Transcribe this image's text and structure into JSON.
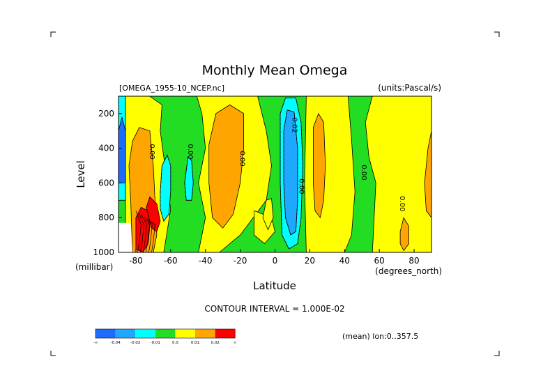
{
  "title": "Monthly Mean Omega",
  "file_label": "[OMEGA_1955-10_NCEP.nc]",
  "units_label": "(units:Pascal/s)",
  "xlabel": "Latitude",
  "ylabel": "Level",
  "x_units": "(degrees_north)",
  "y_units": "(millibar)",
  "contour_interval": "CONTOUR INTERVAL = 1.000E-02",
  "mean_note": "(mean) lon:0..357.5",
  "colors": {
    "lt_m004": "#1e6bff",
    "m004_m002": "#1fa8ff",
    "m002_m001": "#00ffff",
    "m001_0": "#22dd22",
    "0_001": "#ffff00",
    "001_002": "#ffa500",
    "gt_002": "#ff0000"
  },
  "colorbar": {
    "labels": [
      "-∞",
      "-0.04",
      "-0.02",
      "-0.01",
      "0.0",
      "0.01",
      "0.02",
      "∞"
    ],
    "colors": [
      "#1e6bff",
      "#1fa8ff",
      "#00ffff",
      "#22dd22",
      "#ffff00",
      "#ffa500",
      "#ff0000"
    ]
  },
  "chart_data": {
    "type": "heatmap",
    "title": "Monthly Mean Omega",
    "xlabel": "Latitude",
    "ylabel": "Level",
    "units": "Pascal/s",
    "xlim": [
      -90,
      90
    ],
    "ylim": [
      1000,
      100
    ],
    "y_inverted": true,
    "xticks": [
      -80,
      -60,
      -40,
      -20,
      0,
      20,
      40,
      60,
      80
    ],
    "yticks": [
      200,
      400,
      600,
      800,
      1000
    ],
    "levels": [
      -0.04,
      -0.02,
      -0.01,
      0.0,
      0.01,
      0.02
    ],
    "contour_labels": [
      {
        "lat": -72,
        "lev": 420,
        "text": "0.00"
      },
      {
        "lat": -50,
        "lev": 420,
        "text": "0.00"
      },
      {
        "lat": -20,
        "lev": 460,
        "text": "0.00"
      },
      {
        "lat": 10,
        "lev": 260,
        "text": "-0.02"
      },
      {
        "lat": 14,
        "lev": 620,
        "text": "0.00"
      },
      {
        "lat": 50,
        "lev": 540,
        "text": "0.00"
      },
      {
        "lat": 72,
        "lev": 720,
        "text": "0.00"
      }
    ],
    "regions": [
      {
        "color": "m001_0",
        "type": "rect",
        "lat": [
          -90,
          90
        ],
        "lev": [
          100,
          1000
        ]
      },
      {
        "color": "0_001",
        "type": "poly",
        "pts": [
          [
            -86,
            100
          ],
          [
            -72,
            100
          ],
          [
            -65,
            150
          ],
          [
            -66,
            300
          ],
          [
            -64,
            450
          ],
          [
            -62,
            600
          ],
          [
            -60,
            750
          ],
          [
            -62,
            880
          ],
          [
            -64,
            1000
          ],
          [
            -86,
            1000
          ]
        ]
      },
      {
        "color": "0_001",
        "type": "poly",
        "pts": [
          [
            -45,
            100
          ],
          [
            -10,
            100
          ],
          [
            -5,
            300
          ],
          [
            -2,
            500
          ],
          [
            -5,
            700
          ],
          [
            -20,
            900
          ],
          [
            -32,
            1000
          ],
          [
            -44,
            1000
          ],
          [
            -40,
            800
          ],
          [
            -44,
            600
          ],
          [
            -40,
            400
          ],
          [
            -42,
            200
          ]
        ]
      },
      {
        "color": "0_001",
        "type": "poly",
        "pts": [
          [
            -12,
            760
          ],
          [
            -2,
            800
          ],
          [
            0,
            880
          ],
          [
            -6,
            950
          ],
          [
            -12,
            900
          ]
        ]
      },
      {
        "color": "0_001",
        "type": "poly",
        "pts": [
          [
            18,
            100
          ],
          [
            42,
            100
          ],
          [
            44,
            350
          ],
          [
            46,
            650
          ],
          [
            44,
            900
          ],
          [
            40,
            1000
          ],
          [
            18,
            1000
          ],
          [
            17,
            600
          ]
        ]
      },
      {
        "color": "0_001",
        "type": "poly",
        "pts": [
          [
            52,
            250
          ],
          [
            56,
            100
          ],
          [
            90,
            100
          ],
          [
            90,
            1000
          ],
          [
            56,
            1000
          ],
          [
            57,
            800
          ],
          [
            58,
            600
          ],
          [
            54,
            450
          ]
        ]
      },
      {
        "color": "0_001",
        "type": "poly",
        "pts": [
          [
            -5,
            700
          ],
          [
            -2,
            690
          ],
          [
            -1,
            800
          ],
          [
            -4,
            870
          ],
          [
            -7,
            800
          ]
        ]
      },
      {
        "color": "001_002",
        "type": "poly",
        "pts": [
          [
            -82,
            360
          ],
          [
            -78,
            280
          ],
          [
            -72,
            300
          ],
          [
            -70,
            500
          ],
          [
            -69,
            700
          ],
          [
            -68,
            900
          ],
          [
            -70,
            1000
          ],
          [
            -82,
            1000
          ],
          [
            -83,
            700
          ],
          [
            -84,
            500
          ]
        ]
      },
      {
        "color": "001_002",
        "type": "poly",
        "pts": [
          [
            -38,
            380
          ],
          [
            -34,
            200
          ],
          [
            -26,
            150
          ],
          [
            -18,
            200
          ],
          [
            -18,
            400
          ],
          [
            -20,
            600
          ],
          [
            -24,
            780
          ],
          [
            -30,
            860
          ],
          [
            -36,
            800
          ],
          [
            -38,
            600
          ]
        ]
      },
      {
        "color": "001_002",
        "type": "poly",
        "pts": [
          [
            22,
            280
          ],
          [
            25,
            200
          ],
          [
            28,
            250
          ],
          [
            29,
            500
          ],
          [
            28,
            700
          ],
          [
            26,
            800
          ],
          [
            23,
            760
          ],
          [
            22,
            600
          ]
        ]
      },
      {
        "color": "001_002",
        "type": "poly",
        "pts": [
          [
            86,
            600
          ],
          [
            88,
            400
          ],
          [
            90,
            300
          ],
          [
            90,
            800
          ],
          [
            87,
            760
          ]
        ]
      },
      {
        "color": "001_002",
        "type": "poly",
        "pts": [
          [
            72,
            880
          ],
          [
            74,
            800
          ],
          [
            77,
            850
          ],
          [
            77,
            950
          ],
          [
            74,
            990
          ],
          [
            72,
            950
          ]
        ]
      },
      {
        "color": "m002_m001",
        "type": "poly",
        "pts": [
          [
            -66,
            650
          ],
          [
            -65,
            500
          ],
          [
            -62,
            440
          ],
          [
            -60,
            500
          ],
          [
            -60,
            650
          ],
          [
            -61,
            780
          ],
          [
            -64,
            820
          ],
          [
            -66,
            750
          ]
        ]
      },
      {
        "color": "m002_m001",
        "type": "poly",
        "pts": [
          [
            -52,
            600
          ],
          [
            -50,
            450
          ],
          [
            -48,
            470
          ],
          [
            -47,
            600
          ],
          [
            -48,
            700
          ],
          [
            -51,
            700
          ]
        ]
      },
      {
        "color": "m002_m001",
        "type": "poly",
        "pts": [
          [
            -90,
            100
          ],
          [
            -86,
            100
          ],
          [
            -86,
            700
          ],
          [
            -90,
            700
          ]
        ]
      },
      {
        "color": "m002_m001",
        "type": "poly",
        "pts": [
          [
            3,
            200
          ],
          [
            6,
            110
          ],
          [
            12,
            110
          ],
          [
            15,
            250
          ],
          [
            16,
            500
          ],
          [
            15,
            800
          ],
          [
            13,
            950
          ],
          [
            8,
            980
          ],
          [
            4,
            900
          ],
          [
            3,
            600
          ]
        ]
      },
      {
        "color": "m004_m002",
        "type": "poly",
        "pts": [
          [
            5,
            300
          ],
          [
            7,
            180
          ],
          [
            11,
            190
          ],
          [
            13,
            400
          ],
          [
            13,
            700
          ],
          [
            12,
            880
          ],
          [
            9,
            900
          ],
          [
            6,
            800
          ],
          [
            5,
            600
          ]
        ]
      },
      {
        "color": "lt_m004",
        "type": "poly",
        "pts": [
          [
            -90,
            300
          ],
          [
            -88,
            220
          ],
          [
            -86,
            300
          ],
          [
            -86,
            600
          ],
          [
            -90,
            600
          ]
        ]
      },
      {
        "color": "gt_002",
        "type": "poly",
        "pts": [
          [
            -80,
            800
          ],
          [
            -77,
            740
          ],
          [
            -73,
            760
          ],
          [
            -72,
            850
          ],
          [
            -73,
            950
          ],
          [
            -76,
            1000
          ],
          [
            -80,
            980
          ]
        ]
      },
      {
        "color": "gt_002",
        "type": "poly",
        "pts": [
          [
            -74,
            740
          ],
          [
            -72,
            680
          ],
          [
            -68,
            720
          ],
          [
            -66,
            820
          ],
          [
            -68,
            880
          ],
          [
            -71,
            860
          ]
        ]
      }
    ],
    "dashed_contours": [
      [
        [
          3,
          200
        ],
        [
          6,
          110
        ],
        [
          12,
          110
        ],
        [
          15,
          250
        ],
        [
          16,
          500
        ],
        [
          15,
          800
        ],
        [
          13,
          950
        ],
        [
          8,
          980
        ],
        [
          4,
          900
        ],
        [
          3,
          600
        ],
        [
          3,
          200
        ]
      ],
      [
        [
          5,
          300
        ],
        [
          7,
          180
        ],
        [
          11,
          190
        ],
        [
          13,
          400
        ],
        [
          13,
          700
        ],
        [
          12,
          880
        ],
        [
          9,
          900
        ],
        [
          6,
          800
        ],
        [
          5,
          600
        ],
        [
          5,
          300
        ]
      ],
      [
        [
          -66,
          650
        ],
        [
          -65,
          500
        ],
        [
          -62,
          440
        ],
        [
          -60,
          500
        ],
        [
          -60,
          650
        ],
        [
          -61,
          780
        ],
        [
          -64,
          820
        ],
        [
          -66,
          750
        ],
        [
          -66,
          650
        ]
      ],
      [
        [
          -52,
          600
        ],
        [
          -50,
          450
        ],
        [
          -48,
          470
        ],
        [
          -47,
          600
        ],
        [
          -48,
          700
        ],
        [
          -51,
          700
        ],
        [
          -52,
          600
        ]
      ]
    ]
  }
}
